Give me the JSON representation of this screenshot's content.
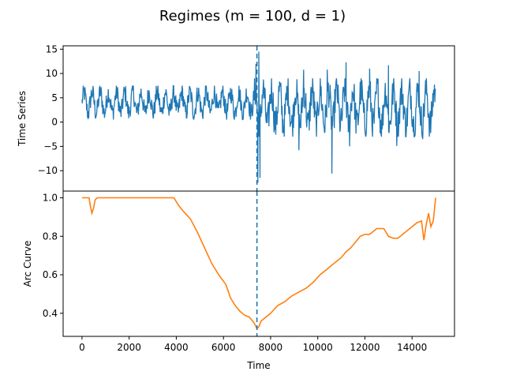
{
  "chart_data": {
    "type": "line",
    "title": "Regimes (m = 100, d = 1)",
    "regime_location": 7420,
    "xlabel": "Time",
    "xlim": [
      -800,
      15800
    ],
    "x_ticks": [
      0,
      2000,
      4000,
      6000,
      8000,
      10000,
      12000,
      14000
    ],
    "x_tick_labels": [
      "0",
      "2000",
      "4000",
      "6000",
      "8000",
      "10000",
      "12000",
      "14000"
    ],
    "panels": [
      {
        "name": "time-series-panel",
        "ylabel": "Time Series",
        "ylim": [
          -14.2,
          15.7
        ],
        "y_ticks": [
          -10,
          -5,
          0,
          5,
          10,
          15
        ],
        "y_tick_labels": [
          "−10",
          "−5",
          "0",
          "5",
          "10",
          "15"
        ],
        "series": [
          {
            "color": "#1f77b4",
            "segments": [
              {
                "x_start": 0,
                "x_end": 7300,
                "low": 0.5,
                "high": 7.5
              },
              {
                "x_start": 7300,
                "x_end": 15000,
                "low": -3.0,
                "high": 9.0
              }
            ],
            "spikes": [
              {
                "x": 7500,
                "y": 14.5
              },
              {
                "x": 7460,
                "y": -12.5
              },
              {
                "x": 7380,
                "y": 12.0
              },
              {
                "x": 7550,
                "y": -11.5
              },
              {
                "x": 9200,
                "y": -5.8
              },
              {
                "x": 9400,
                "y": 10.8
              },
              {
                "x": 10400,
                "y": 10.8
              },
              {
                "x": 10600,
                "y": -10.6
              },
              {
                "x": 11200,
                "y": 12.3
              },
              {
                "x": 11350,
                "y": -5.0
              },
              {
                "x": 12200,
                "y": 11.0
              },
              {
                "x": 13000,
                "y": 11.7
              },
              {
                "x": 13350,
                "y": -4.9
              },
              {
                "x": 14300,
                "y": 10.5
              },
              {
                "x": 14450,
                "y": -3.5
              }
            ]
          }
        ]
      },
      {
        "name": "arc-curve-panel",
        "ylabel": "Arc Curve",
        "ylim": [
          0.28,
          1.035
        ],
        "y_ticks": [
          0.4,
          0.6,
          0.8,
          1.0
        ],
        "y_tick_labels": [
          "0.4",
          "0.6",
          "0.8",
          "1.0"
        ],
        "series": [
          {
            "color": "#ff7f0e",
            "x": [
              0,
              150,
              300,
              350,
              420,
              500,
              560,
              650,
              800,
              1200,
              2000,
              3000,
              3900,
              4100,
              4300,
              4600,
              4900,
              5200,
              5500,
              5800,
              6100,
              6300,
              6500,
              6700,
              6900,
              7100,
              7300,
              7420,
              7500,
              7600,
              7800,
              8000,
              8300,
              8600,
              8900,
              9200,
              9500,
              9800,
              10100,
              10400,
              10600,
              10800,
              11000,
              11200,
              11400,
              11600,
              11800,
              12000,
              12200,
              12500,
              12800,
              13000,
              13200,
              13400,
              13600,
              13800,
              14000,
              14200,
              14400,
              14500,
              14600,
              14700,
              14800,
              14900,
              15000
            ],
            "y": [
              1.0,
              1.0,
              1.0,
              0.96,
              0.92,
              0.95,
              0.99,
              1.0,
              1.0,
              1.0,
              1.0,
              1.0,
              1.0,
              0.96,
              0.93,
              0.89,
              0.82,
              0.74,
              0.66,
              0.6,
              0.55,
              0.48,
              0.44,
              0.41,
              0.39,
              0.38,
              0.35,
              0.32,
              0.33,
              0.36,
              0.38,
              0.4,
              0.44,
              0.46,
              0.49,
              0.51,
              0.53,
              0.56,
              0.6,
              0.63,
              0.65,
              0.67,
              0.69,
              0.72,
              0.74,
              0.77,
              0.8,
              0.81,
              0.81,
              0.84,
              0.84,
              0.8,
              0.79,
              0.79,
              0.81,
              0.83,
              0.85,
              0.87,
              0.88,
              0.78,
              0.86,
              0.92,
              0.85,
              0.88,
              1.0
            ]
          }
        ]
      }
    ]
  }
}
